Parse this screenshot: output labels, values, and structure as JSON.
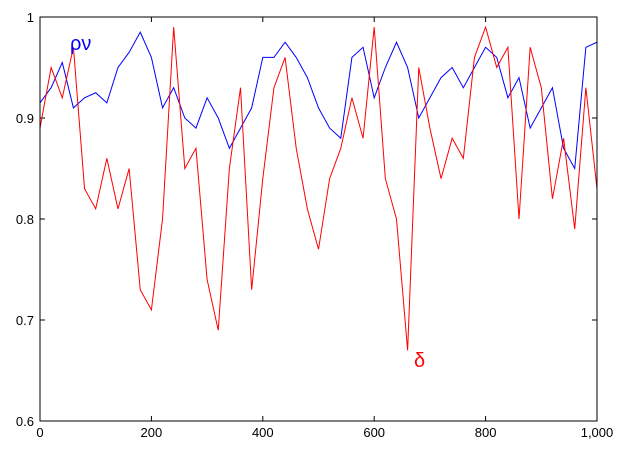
{
  "chart_data": {
    "type": "line",
    "x": [
      0,
      20,
      40,
      60,
      80,
      100,
      120,
      140,
      160,
      180,
      200,
      220,
      240,
      260,
      280,
      300,
      320,
      340,
      360,
      380,
      400,
      420,
      440,
      460,
      480,
      500,
      520,
      540,
      560,
      580,
      600,
      620,
      640,
      660,
      680,
      700,
      720,
      740,
      760,
      780,
      800,
      820,
      840,
      860,
      880,
      900,
      920,
      940,
      960,
      980,
      1000
    ],
    "series": [
      {
        "name": "ρν",
        "color": "#0000ff",
        "values": [
          0.915,
          0.93,
          0.955,
          0.91,
          0.92,
          0.925,
          0.915,
          0.95,
          0.965,
          0.985,
          0.96,
          0.91,
          0.93,
          0.9,
          0.89,
          0.92,
          0.9,
          0.87,
          0.89,
          0.91,
          0.96,
          0.96,
          0.975,
          0.96,
          0.94,
          0.91,
          0.89,
          0.88,
          0.96,
          0.97,
          0.92,
          0.95,
          0.975,
          0.95,
          0.9,
          0.92,
          0.94,
          0.95,
          0.93,
          0.95,
          0.97,
          0.96,
          0.92,
          0.94,
          0.89,
          0.91,
          0.93,
          0.87,
          0.85,
          0.97,
          0.975
        ]
      },
      {
        "name": "δ",
        "color": "#ff0000",
        "values": [
          0.89,
          0.95,
          0.92,
          0.97,
          0.83,
          0.81,
          0.86,
          0.81,
          0.85,
          0.73,
          0.71,
          0.8,
          0.99,
          0.85,
          0.87,
          0.74,
          0.69,
          0.85,
          0.93,
          0.73,
          0.84,
          0.93,
          0.96,
          0.87,
          0.81,
          0.77,
          0.84,
          0.87,
          0.92,
          0.88,
          0.99,
          0.84,
          0.8,
          0.67,
          0.95,
          0.89,
          0.84,
          0.88,
          0.86,
          0.96,
          0.99,
          0.95,
          0.97,
          0.8,
          0.97,
          0.93,
          0.82,
          0.88,
          0.79,
          0.93,
          0.83
        ]
      }
    ],
    "xlim": [
      0,
      1000
    ],
    "xticks": [
      0,
      200,
      400,
      600,
      800,
      {
        "value": 1000,
        "label": "1,000"
      }
    ],
    "ylim": [
      0.6,
      1
    ],
    "yticks": [
      0.6,
      0.7,
      0.8,
      0.9,
      1
    ]
  }
}
